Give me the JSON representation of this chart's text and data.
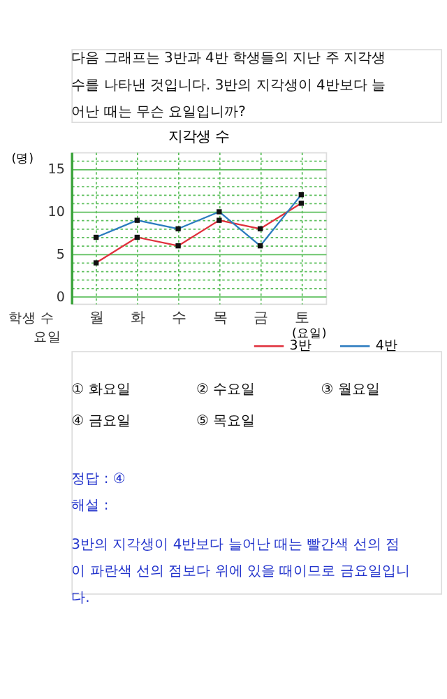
{
  "chart_data": {
    "type": "line",
    "title": "지각생 수",
    "categories": [
      "월",
      "화",
      "수",
      "목",
      "금",
      "토"
    ],
    "series": [
      {
        "name": "3반",
        "color": "#e0303c",
        "values": [
          4,
          7,
          6,
          9,
          8,
          11
        ]
      },
      {
        "name": "4반",
        "color": "#2b7bbf",
        "values": [
          7,
          9,
          8,
          10,
          6,
          12
        ]
      }
    ],
    "xlabel": "(요일)",
    "ylabel": "(명)",
    "ylim": [
      -0.8,
      17
    ],
    "yticks": [
      0,
      {
        "value": 1,
        "label": null
      },
      {
        "value": 2,
        "label": null
      },
      {
        "value": 3,
        "label": null
      },
      {
        "value": 4,
        "label": null
      },
      5,
      {
        "value": 6,
        "label": null
      },
      {
        "value": 7,
        "label": null
      },
      {
        "value": 8,
        "label": null
      },
      {
        "value": 9,
        "label": null
      },
      10,
      {
        "value": 11,
        "label": null
      },
      {
        "value": 12,
        "label": null
      },
      {
        "value": 13,
        "label": null
      },
      {
        "value": 14,
        "label": null
      },
      15,
      {
        "value": 16,
        "label": null
      }
    ],
    "grid": true,
    "marker": "square",
    "line_style": "solid",
    "legend": "bottom right",
    "annotations": [
      "다음 그래프는 3반과 4반 학생들의 지난 주 지각생",
      "수를 나타낸 것입니다. 3반의 지각생이 4반보다 늘",
      "어난 때는 무슨 요일입니까?",
      "학생 수",
      "요일",
      "① 화요일",
      "② 수요일",
      "③ 월요일",
      "④ 금요일",
      "⑤ 목요일",
      "정답 : ④",
      "해설 :",
      "3반의 지각생이 4반보다 늘어난 때는 빨간색 선의 점",
      "이 파란색 선의 점보다 위에 있을 때이므로 금요일입니",
      "다."
    ]
  }
}
